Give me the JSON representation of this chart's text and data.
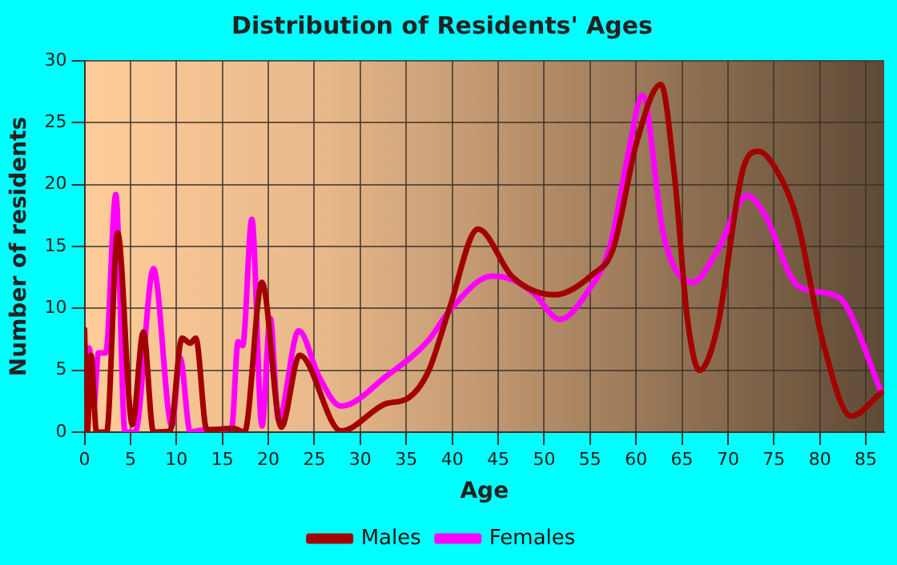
{
  "chart_data": {
    "type": "line",
    "title": "Distribution of Residents' Ages",
    "xlabel": "Age",
    "ylabel": "Number of residents",
    "xlim": [
      0,
      87
    ],
    "xticks": [
      0,
      5,
      10,
      15,
      20,
      25,
      30,
      35,
      40,
      45,
      50,
      55,
      60,
      65,
      70,
      75,
      80,
      85
    ],
    "ylim": [
      0,
      30
    ],
    "yticks": [
      0,
      5,
      10,
      15,
      20,
      25,
      30
    ],
    "grid": true,
    "legend": "bottom",
    "marker": "none",
    "line_style": "solid",
    "series": [
      {
        "name": "Males",
        "color": "#a30000",
        "x": [
          0,
          0.3,
          0.7,
          1.3,
          2.4,
          3.6,
          5.2,
          6.4,
          7.5,
          9.3,
          10.6,
          11.5,
          12.1,
          13.3,
          16.2,
          17.4,
          19.3,
          21.4,
          23.4,
          27.9,
          32.8,
          35.1,
          37.4,
          39.7,
          42.8,
          46.6,
          51.1,
          55.2,
          57.5,
          60.1,
          62.7,
          64.2,
          65.6,
          66.9,
          68.8,
          71.7,
          73.3,
          75.1,
          77.5,
          80.3,
          83.4,
          86.7
        ],
        "values": [
          8.3,
          0,
          6.2,
          0,
          0,
          16.1,
          0.6,
          8.1,
          0,
          0.1,
          7.6,
          7.2,
          7.6,
          0.2,
          0.3,
          0,
          12.1,
          0.4,
          6.2,
          0.1,
          2.3,
          2.7,
          4.9,
          10,
          16.4,
          12.5,
          11.1,
          12.7,
          14.8,
          23.5,
          28.1,
          20.6,
          9.1,
          5,
          8.3,
          21.4,
          22.7,
          21.4,
          17.2,
          7.4,
          1.3,
          3.2
        ]
      },
      {
        "name": "Females",
        "color": "#ff00ff",
        "x": [
          0.2,
          0.5,
          1,
          1.5,
          2.3,
          3.4,
          4.4,
          5.5,
          7.5,
          9.5,
          10.4,
          11.5,
          13,
          16,
          16.7,
          17.2,
          18.2,
          19.3,
          20.2,
          21.1,
          23.3,
          25.5,
          27.9,
          32.8,
          37.4,
          39.7,
          44.3,
          46.6,
          48.9,
          51.7,
          54.6,
          57.2,
          59.2,
          60.7,
          63,
          66.2,
          68.8,
          72.1,
          74,
          77.5,
          80.9,
          82.7,
          86.7
        ],
        "values": [
          0,
          6.8,
          2,
          6.4,
          6.4,
          19.2,
          0,
          0,
          13.2,
          0.5,
          6,
          0,
          0.2,
          0.3,
          7.3,
          7,
          17.2,
          0.5,
          9.2,
          1,
          8.2,
          4.5,
          2.1,
          4.5,
          7.4,
          9.8,
          12.6,
          12.3,
          11.2,
          9.1,
          11.2,
          15.1,
          22.7,
          27.2,
          15.9,
          12.1,
          14.6,
          19.1,
          17.6,
          11.9,
          11.2,
          10.4,
          3.2
        ]
      }
    ]
  }
}
